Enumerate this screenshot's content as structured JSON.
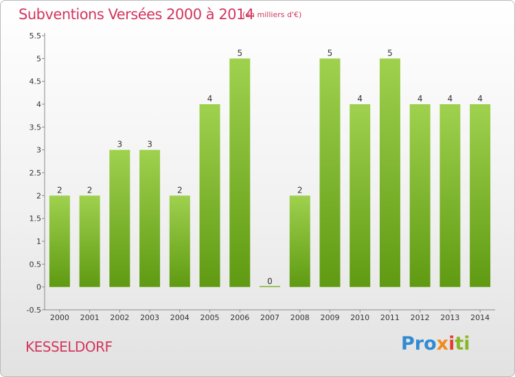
{
  "header": {
    "title": "Subventions Versées 2000 à 2014",
    "unit": "(en milliers d'€)"
  },
  "footer": {
    "place": "KESSELDORF",
    "logo_parts": [
      "Pro",
      "x",
      "i",
      "ti"
    ]
  },
  "colors": {
    "title": "#d2365d",
    "bar_top": "#9fd14e",
    "bar_bottom": "#5f9a12"
  },
  "chart_data": {
    "type": "bar",
    "title": "Subventions Versées 2000 à 2014",
    "ylabel": "",
    "xlabel": "",
    "categories": [
      "2000",
      "2001",
      "2002",
      "2003",
      "2004",
      "2005",
      "2006",
      "2007",
      "2008",
      "2009",
      "2010",
      "2011",
      "2012",
      "2013",
      "2014"
    ],
    "values": [
      2,
      2,
      3,
      3,
      2,
      4,
      5,
      0,
      2,
      5,
      4,
      5,
      4,
      4,
      4
    ],
    "data_labels": [
      "2",
      "2",
      "3",
      "3",
      "2",
      "4",
      "5",
      "0",
      "2",
      "5",
      "4",
      "5",
      "4",
      "4",
      "4"
    ],
    "ylim": [
      -0.5,
      5.5
    ],
    "yticks": [
      "-0.5",
      "0",
      "0.5",
      "1",
      "1.5",
      "2",
      "2.5",
      "3",
      "3.5",
      "4",
      "4.5",
      "5",
      "5.5"
    ],
    "ytick_values": [
      -0.5,
      0,
      0.5,
      1,
      1.5,
      2,
      2.5,
      3,
      3.5,
      4,
      4.5,
      5,
      5.5
    ],
    "grid": false,
    "legend": "none"
  }
}
